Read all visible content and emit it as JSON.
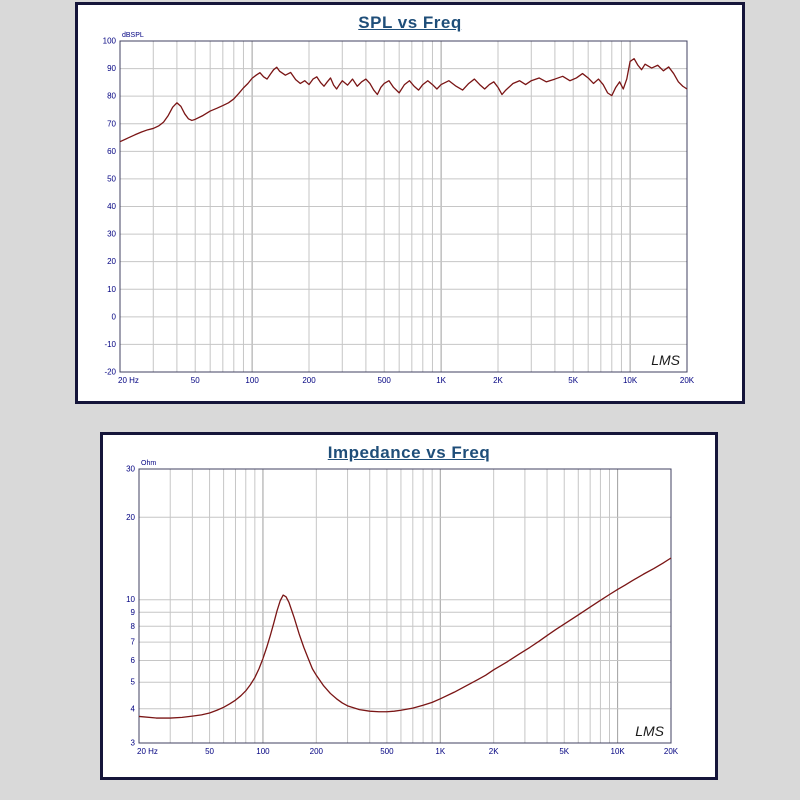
{
  "page": {
    "background": "#d9d9d9"
  },
  "colors": {
    "panel_border": "#15153a",
    "title": "#1f4e79",
    "axis_label": "#000080",
    "grid": "#c6c6c6",
    "grid_major": "#9e9e9e",
    "frame": "#404060",
    "curve": "#7a1515",
    "logo": "#1a1a1a"
  },
  "chart_data": [
    {
      "type": "line",
      "title": "SPL vs Freq",
      "unit_label": "dBSPL",
      "logo": "LMS",
      "x_scale": "log",
      "y_scale": "linear",
      "x_range": [
        20,
        20000
      ],
      "y_range": [
        -20,
        100
      ],
      "y_ticks": [
        100,
        90,
        80,
        70,
        60,
        50,
        40,
        30,
        20,
        10,
        0,
        -10,
        -20
      ],
      "x_ticks": [
        {
          "v": 20,
          "label": "20 Hz"
        },
        {
          "v": 50,
          "label": "50"
        },
        {
          "v": 100,
          "label": "100"
        },
        {
          "v": 200,
          "label": "200"
        },
        {
          "v": 500,
          "label": "500"
        },
        {
          "v": 1000,
          "label": "1K"
        },
        {
          "v": 2000,
          "label": "2K"
        },
        {
          "v": 5000,
          "label": "5K"
        },
        {
          "v": 10000,
          "label": "10K"
        },
        {
          "v": 20000,
          "label": "20K"
        }
      ],
      "points": [
        [
          20,
          63.5
        ],
        [
          22,
          64.8
        ],
        [
          24,
          66
        ],
        [
          26,
          67
        ],
        [
          28,
          67.8
        ],
        [
          30,
          68.3
        ],
        [
          32,
          69.2
        ],
        [
          34,
          70.6
        ],
        [
          36,
          73
        ],
        [
          38,
          76
        ],
        [
          40,
          77.6
        ],
        [
          42,
          76.3
        ],
        [
          44,
          73.6
        ],
        [
          46,
          71.8
        ],
        [
          48,
          71.2
        ],
        [
          50,
          71.6
        ],
        [
          55,
          73
        ],
        [
          60,
          74.6
        ],
        [
          65,
          75.6
        ],
        [
          70,
          76.6
        ],
        [
          75,
          77.6
        ],
        [
          80,
          79
        ],
        [
          85,
          81
        ],
        [
          90,
          83
        ],
        [
          95,
          84.6
        ],
        [
          100,
          86.5
        ],
        [
          105,
          87.6
        ],
        [
          110,
          88.5
        ],
        [
          115,
          87
        ],
        [
          120,
          86.2
        ],
        [
          125,
          88
        ],
        [
          130,
          89.6
        ],
        [
          135,
          90.5
        ],
        [
          140,
          89
        ],
        [
          150,
          87.6
        ],
        [
          160,
          88.6
        ],
        [
          170,
          86
        ],
        [
          180,
          84.6
        ],
        [
          190,
          85.6
        ],
        [
          200,
          84.2
        ],
        [
          210,
          86.2
        ],
        [
          220,
          87
        ],
        [
          230,
          85
        ],
        [
          240,
          83.6
        ],
        [
          250,
          85.2
        ],
        [
          260,
          86.6
        ],
        [
          270,
          84
        ],
        [
          280,
          82.6
        ],
        [
          290,
          84.2
        ],
        [
          300,
          85.6
        ],
        [
          320,
          84
        ],
        [
          340,
          86.2
        ],
        [
          360,
          83.6
        ],
        [
          380,
          85.2
        ],
        [
          400,
          86.2
        ],
        [
          420,
          84.6
        ],
        [
          440,
          82.2
        ],
        [
          460,
          80.6
        ],
        [
          480,
          83.2
        ],
        [
          500,
          84.6
        ],
        [
          530,
          85.6
        ],
        [
          560,
          83.2
        ],
        [
          600,
          81.2
        ],
        [
          640,
          84.2
        ],
        [
          680,
          85.6
        ],
        [
          720,
          83.6
        ],
        [
          760,
          82.2
        ],
        [
          800,
          84.2
        ],
        [
          850,
          85.6
        ],
        [
          900,
          84.2
        ],
        [
          950,
          82.6
        ],
        [
          1000,
          84.2
        ],
        [
          1100,
          85.6
        ],
        [
          1200,
          83.6
        ],
        [
          1300,
          82.2
        ],
        [
          1400,
          84.6
        ],
        [
          1500,
          86.2
        ],
        [
          1600,
          84.2
        ],
        [
          1700,
          82.6
        ],
        [
          1800,
          84.2
        ],
        [
          1900,
          85.2
        ],
        [
          2000,
          83.2
        ],
        [
          2100,
          80.6
        ],
        [
          2200,
          82.2
        ],
        [
          2400,
          84.6
        ],
        [
          2600,
          85.6
        ],
        [
          2800,
          84.2
        ],
        [
          3000,
          85.6
        ],
        [
          3300,
          86.6
        ],
        [
          3600,
          85.2
        ],
        [
          4000,
          86.2
        ],
        [
          4400,
          87.2
        ],
        [
          4800,
          85.6
        ],
        [
          5200,
          86.6
        ],
        [
          5600,
          88.2
        ],
        [
          6000,
          86.6
        ],
        [
          6400,
          84.6
        ],
        [
          6800,
          86.2
        ],
        [
          7200,
          84.2
        ],
        [
          7600,
          81.2
        ],
        [
          8000,
          80.2
        ],
        [
          8400,
          83.2
        ],
        [
          8800,
          85.2
        ],
        [
          9200,
          82.6
        ],
        [
          9600,
          86.2
        ],
        [
          10000,
          92.6
        ],
        [
          10500,
          93.6
        ],
        [
          11000,
          91.2
        ],
        [
          11500,
          89.6
        ],
        [
          12000,
          91.6
        ],
        [
          13000,
          90.2
        ],
        [
          14000,
          91.2
        ],
        [
          15000,
          89.2
        ],
        [
          16000,
          90.6
        ],
        [
          17000,
          88.2
        ],
        [
          18000,
          85.2
        ],
        [
          19000,
          83.6
        ],
        [
          20000,
          82.6
        ]
      ]
    },
    {
      "type": "line",
      "title": "Impedance vs Freq",
      "unit_label": "Ohm",
      "logo": "LMS",
      "x_scale": "log",
      "y_scale": "log",
      "x_range": [
        20,
        20000
      ],
      "y_range": [
        3,
        30
      ],
      "y_ticks": [
        30,
        20,
        10,
        9,
        8,
        7,
        6,
        5,
        4,
        3
      ],
      "x_ticks": [
        {
          "v": 20,
          "label": "20 Hz"
        },
        {
          "v": 50,
          "label": "50"
        },
        {
          "v": 100,
          "label": "100"
        },
        {
          "v": 200,
          "label": "200"
        },
        {
          "v": 500,
          "label": "500"
        },
        {
          "v": 1000,
          "label": "1K"
        },
        {
          "v": 2000,
          "label": "2K"
        },
        {
          "v": 5000,
          "label": "5K"
        },
        {
          "v": 10000,
          "label": "10K"
        },
        {
          "v": 20000,
          "label": "20K"
        }
      ],
      "points": [
        [
          20,
          3.75
        ],
        [
          25,
          3.7
        ],
        [
          30,
          3.7
        ],
        [
          35,
          3.72
        ],
        [
          40,
          3.76
        ],
        [
          45,
          3.8
        ],
        [
          50,
          3.86
        ],
        [
          55,
          3.95
        ],
        [
          60,
          4.05
        ],
        [
          65,
          4.17
        ],
        [
          70,
          4.3
        ],
        [
          75,
          4.46
        ],
        [
          80,
          4.65
        ],
        [
          85,
          4.9
        ],
        [
          90,
          5.2
        ],
        [
          95,
          5.6
        ],
        [
          100,
          6.1
        ],
        [
          105,
          6.7
        ],
        [
          110,
          7.4
        ],
        [
          115,
          8.2
        ],
        [
          120,
          9.1
        ],
        [
          125,
          9.9
        ],
        [
          130,
          10.4
        ],
        [
          135,
          10.25
        ],
        [
          140,
          9.8
        ],
        [
          150,
          8.6
        ],
        [
          160,
          7.5
        ],
        [
          170,
          6.7
        ],
        [
          180,
          6.1
        ],
        [
          190,
          5.6
        ],
        [
          200,
          5.3
        ],
        [
          220,
          4.85
        ],
        [
          240,
          4.55
        ],
        [
          260,
          4.35
        ],
        [
          280,
          4.2
        ],
        [
          300,
          4.1
        ],
        [
          350,
          3.97
        ],
        [
          400,
          3.92
        ],
        [
          450,
          3.9
        ],
        [
          500,
          3.9
        ],
        [
          550,
          3.92
        ],
        [
          600,
          3.95
        ],
        [
          700,
          4.02
        ],
        [
          800,
          4.12
        ],
        [
          900,
          4.22
        ],
        [
          1000,
          4.35
        ],
        [
          1200,
          4.6
        ],
        [
          1400,
          4.85
        ],
        [
          1600,
          5.08
        ],
        [
          1800,
          5.3
        ],
        [
          2000,
          5.55
        ],
        [
          2400,
          5.95
        ],
        [
          2800,
          6.35
        ],
        [
          3200,
          6.7
        ],
        [
          3600,
          7.05
        ],
        [
          4000,
          7.4
        ],
        [
          4500,
          7.8
        ],
        [
          5000,
          8.15
        ],
        [
          6000,
          8.8
        ],
        [
          7000,
          9.4
        ],
        [
          8000,
          9.95
        ],
        [
          9000,
          10.45
        ],
        [
          10000,
          10.9
        ],
        [
          11000,
          11.3
        ],
        [
          12000,
          11.7
        ],
        [
          14000,
          12.4
        ],
        [
          16000,
          13.0
        ],
        [
          18000,
          13.6
        ],
        [
          20000,
          14.2
        ]
      ]
    }
  ]
}
